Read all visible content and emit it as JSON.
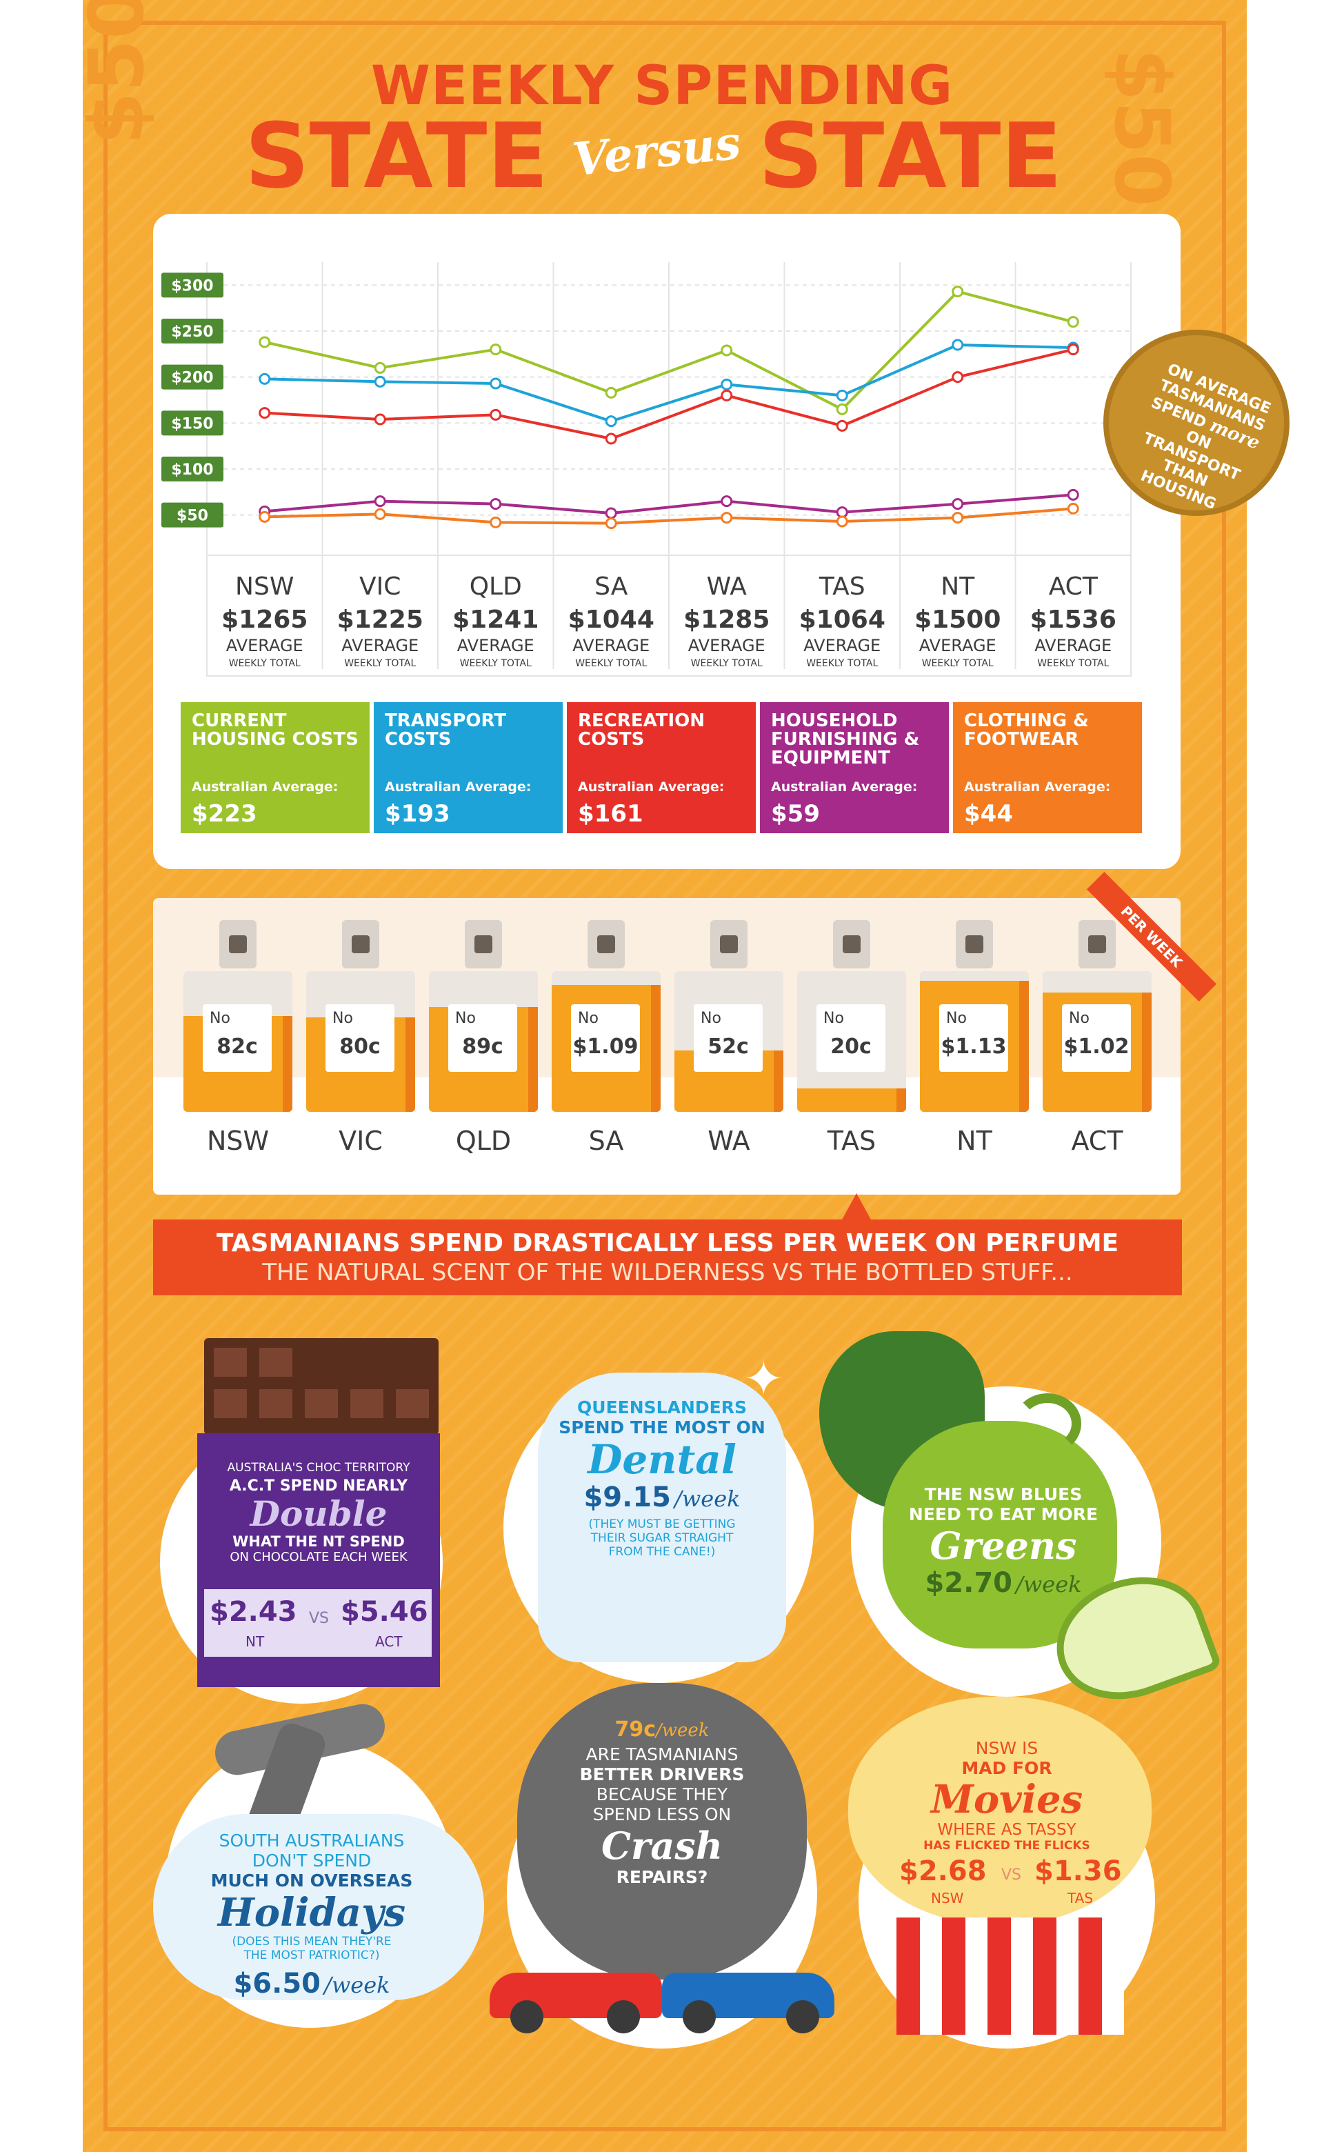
{
  "title": {
    "line1": "WEEKLY SPENDING",
    "left": "STATE",
    "versus": "Versus",
    "right": "STATE"
  },
  "decor": {
    "left_price": "$50",
    "right_price": "$50"
  },
  "callout": {
    "line1": "ON AVERAGE",
    "line2": "TASMANIANS",
    "line3": "SPEND",
    "emph": "more",
    "line4": "ON TRANSPORT",
    "line5": "THAN HOUSING"
  },
  "chart_data": {
    "type": "line",
    "categories": [
      "NSW",
      "VIC",
      "QLD",
      "SA",
      "WA",
      "TAS",
      "NT",
      "ACT"
    ],
    "y_ticks": [
      "$300",
      "$250",
      "$200",
      "$150",
      "$100",
      "$50"
    ],
    "ylim": [
      25,
      310
    ],
    "grid": true,
    "series": [
      {
        "name": "CURRENT HOUSING COSTS",
        "color": "#9cc42a",
        "values": [
          238,
          210,
          230,
          183,
          229,
          165,
          293,
          260
        ]
      },
      {
        "name": "TRANSPORT COSTS",
        "color": "#1ea3d8",
        "values": [
          198,
          195,
          193,
          152,
          192,
          180,
          235,
          232
        ]
      },
      {
        "name": "RECREATION COSTS",
        "color": "#e8302a",
        "values": [
          161,
          154,
          159,
          133,
          180,
          147,
          200,
          230
        ]
      },
      {
        "name": "HOUSEHOLD FURNISHING & EQUIPMENT",
        "color": "#a52a8a",
        "values": [
          54,
          65,
          62,
          52,
          65,
          53,
          62,
          72
        ]
      },
      {
        "name": "CLOTHING & FOOTWEAR",
        "color": "#f47b20",
        "values": [
          48,
          51,
          42,
          41,
          47,
          43,
          47,
          57
        ]
      }
    ],
    "totals": [
      "$1265",
      "$1225",
      "$1241",
      "$1044",
      "$1285",
      "$1064",
      "$1500",
      "$1536"
    ],
    "total_caption": "AVERAGE",
    "total_subcaption": "WEEKLY TOTAL"
  },
  "legend": [
    {
      "title": "CURRENT HOUSING COSTS",
      "label": "Australian Average:",
      "value": "$223",
      "color": "#9cc42a"
    },
    {
      "title": "TRANSPORT COSTS",
      "label": "Australian Average:",
      "value": "$193",
      "color": "#1ea3d8"
    },
    {
      "title": "RECREATION COSTS",
      "label": "Australian Average:",
      "value": "$161",
      "color": "#e8302a"
    },
    {
      "title": "HOUSEHOLD FURNISHING & EQUIPMENT",
      "label": "Australian Average:",
      "value": "$59",
      "color": "#a52a8a"
    },
    {
      "title": "CLOTHING & FOOTWEAR",
      "label": "Australian Average:",
      "value": "$44",
      "color": "#f47b20"
    }
  ],
  "perfume": {
    "ribbon": "PER WEEK",
    "no_label": "No",
    "states": [
      "NSW",
      "VIC",
      "QLD",
      "SA",
      "WA",
      "TAS",
      "NT",
      "ACT"
    ],
    "values": [
      "82c",
      "80c",
      "89c",
      "$1.09",
      "52c",
      "20c",
      "$1.13",
      "$1.02"
    ],
    "fill": [
      0.73,
      0.72,
      0.8,
      0.97,
      0.47,
      0.18,
      1.0,
      0.91
    ]
  },
  "banner": {
    "line1": "TASMANIANS SPEND DRASTICALLY LESS PER WEEK ON PERFUME",
    "line2": "THE NATURAL SCENT OF THE WILDERNESS VS THE BOTTLED STUFF..."
  },
  "choc": {
    "l1": "AUSTRALIA'S CHOC TERRITORY",
    "l2": "A.C.T SPEND NEARLY",
    "big": "Double",
    "l3": "WHAT THE NT SPEND",
    "l4": "ON CHOCOLATE EACH WEEK",
    "v1": "$2.43",
    "n1": "NT",
    "vs": "VS",
    "v2": "$5.46",
    "n2": "ACT"
  },
  "dental": {
    "l1": "QUEENSLANDERS",
    "l2": "SPEND THE MOST ON",
    "big": "Dental",
    "value": "$9.15",
    "unit": "/week",
    "n1": "(THEY MUST BE GETTING",
    "n2": "THEIR SUGAR STRAIGHT",
    "n3": "FROM THE CANE!)"
  },
  "greens": {
    "l1": "THE NSW BLUES",
    "l2": "NEED TO EAT MORE",
    "big": "Greens",
    "value": "$2.70",
    "unit": "/week"
  },
  "holidays": {
    "l1": "SOUTH AUSTRALIANS",
    "l2": "DON'T SPEND",
    "l3": "MUCH ON OVERSEAS",
    "big": "Holidays",
    "n1": "(DOES THIS MEAN THEY'RE",
    "n2": "THE MOST PATRIOTIC?)",
    "value": "$6.50",
    "unit": "/week"
  },
  "crash": {
    "value": "79c",
    "unit": "/week",
    "l1": "ARE TASMANIANS",
    "l2": "BETTER DRIVERS",
    "l3": "BECAUSE THEY",
    "l4": "SPEND LESS ON",
    "big": "Crash",
    "l5": "REPAIRS?"
  },
  "movies": {
    "l1": "NSW IS",
    "l2": "MAD FOR",
    "big": "Movies",
    "l3": "WHERE AS TASSY",
    "l4": "HAS FLICKED THE FLICKS",
    "v1": "$2.68",
    "n1": "NSW",
    "vs": "VS",
    "v2": "$1.36",
    "n2": "TAS"
  }
}
